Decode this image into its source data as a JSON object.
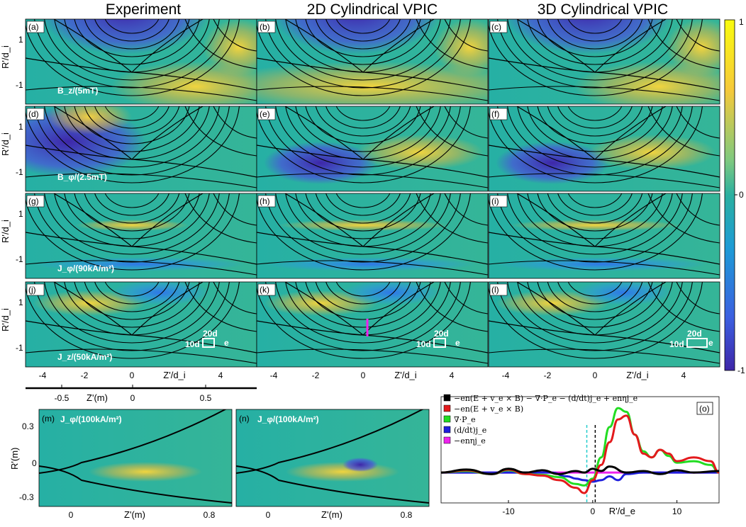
{
  "columns": [
    "Experiment",
    "2D Cylindrical VPIC",
    "3D Cylindrical VPIC"
  ],
  "panel_letters": [
    "(a)",
    "(b)",
    "(c)",
    "(d)",
    "(e)",
    "(f)",
    "(g)",
    "(h)",
    "(i)",
    "(j)",
    "(k)",
    "(l)",
    "(m)",
    "(n)",
    "(o)"
  ],
  "field_labels": {
    "a": "B_z/(5mT)",
    "d": "B_φ/(2.5mT)",
    "g": "J_φ/(90kA/m²)",
    "j": "J_z/(50kA/m²)",
    "m": "J_φ/(100kA/m²)",
    "n": "J_φ/(100kA/m²)"
  },
  "axes": {
    "r_ylabel": "R'/d_i",
    "r_yticks": [
      "1",
      "-1"
    ],
    "z_xlabel": "Z'/d_i",
    "z_xticks": [
      "-4",
      "-2",
      "0",
      "4"
    ],
    "zm_xlabel": "Z'(m)",
    "zm_xticks": [
      "-0.5",
      "0",
      "0.5"
    ],
    "mn_ylabel": "R'(m)",
    "mn_yticks": [
      "0.3",
      "0",
      "-0.3"
    ],
    "mn_xticks": [
      "0",
      "0.8"
    ],
    "o_xlabel": "R'/d_e",
    "o_xticks": [
      "-10",
      "0",
      "10"
    ]
  },
  "colorbar": {
    "ticks": [
      "1",
      "0",
      "-1"
    ]
  },
  "scale_boxes": {
    "j": {
      "w": "20d",
      "sub": "e",
      "h": "10d"
    },
    "k": {
      "w": "20d",
      "sub": "e",
      "h": "10d"
    },
    "l": {
      "w": "20d",
      "sub": "e",
      "h": "10d"
    }
  },
  "chart_data": {
    "type": "line",
    "xlabel": "R'/d_e",
    "xticks": [
      -10,
      0,
      10
    ],
    "xlim": [
      -18,
      15
    ],
    "ylim": [
      -0.4,
      1.0
    ],
    "series": [
      {
        "name": "−en(E + v_e × B) − ∇·P_e − (d/dt)j_e + enηj_e",
        "color": "#000000",
        "x": [
          -18,
          -15,
          -12,
          -10,
          -8,
          -6,
          -4,
          -2,
          -1,
          0,
          1,
          2,
          4,
          6,
          8,
          10,
          12,
          15
        ],
        "y": [
          0,
          0.04,
          -0.02,
          0.05,
          0,
          0.03,
          -0.02,
          0.02,
          0,
          0.05,
          0.02,
          0.08,
          0,
          0.02,
          -0.02,
          0.03,
          0,
          0.02
        ]
      },
      {
        "name": "−en(E + v_e × B)",
        "color": "#e31a1c",
        "x": [
          -18,
          -15,
          -12,
          -10,
          -8,
          -6,
          -4,
          -2,
          -1,
          0,
          1,
          2,
          3,
          4,
          5,
          6,
          7,
          8,
          9,
          10,
          12,
          14,
          15
        ],
        "y": [
          0,
          0.03,
          -0.02,
          0.04,
          -0.02,
          -0.04,
          -0.1,
          -0.2,
          -0.27,
          -0.1,
          0.1,
          0.4,
          0.7,
          0.75,
          0.5,
          0.25,
          0.2,
          0.3,
          0.25,
          0.15,
          0.2,
          0.15,
          0
        ]
      },
      {
        "name": "∇·P_e",
        "color": "#22dd22",
        "x": [
          -18,
          -15,
          -12,
          -10,
          -8,
          -6,
          -4,
          -2,
          -1,
          0,
          1,
          2,
          3,
          4,
          5,
          6,
          7,
          8,
          9,
          10,
          12,
          14,
          15
        ],
        "y": [
          0,
          0.02,
          -0.02,
          0.03,
          -0.02,
          -0.03,
          -0.06,
          -0.15,
          -0.17,
          -0.08,
          0.2,
          0.6,
          0.85,
          0.8,
          0.5,
          0.28,
          0.2,
          0.3,
          0.22,
          0.13,
          0.15,
          0.1,
          0
        ]
      },
      {
        "name": "(d/dt)j_e",
        "color": "#1f1fdd",
        "x": [
          -18,
          -10,
          -5,
          -3,
          -2,
          -1,
          0,
          1,
          2,
          3,
          4,
          6,
          10,
          15
        ],
        "y": [
          0,
          0,
          0,
          -0.05,
          -0.08,
          -0.1,
          -0.12,
          -0.1,
          -0.05,
          -0.1,
          -0.02,
          0,
          0,
          0
        ]
      },
      {
        "name": "−enηj_e",
        "color": "#ee22ee",
        "x": [
          -18,
          15
        ],
        "y": [
          0,
          0
        ]
      }
    ]
  },
  "o_vlines": {
    "cyan_x": -0.7,
    "black_x": 0.3
  }
}
